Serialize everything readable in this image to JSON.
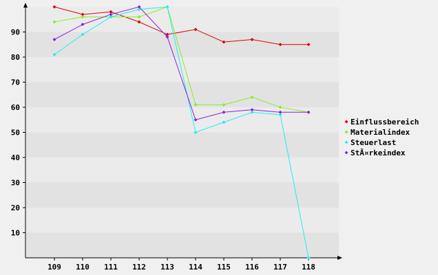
{
  "chart_data": {
    "type": "line",
    "title": "",
    "xlabel": "",
    "ylabel": "",
    "x": [
      "109",
      "110",
      "111",
      "112",
      "113",
      "114",
      "115",
      "116",
      "117",
      "118"
    ],
    "ylim": [
      0,
      100
    ],
    "yticks": [
      10,
      20,
      30,
      40,
      50,
      60,
      70,
      80,
      90
    ],
    "grid": "horizontal bands",
    "legend_position": "right",
    "series": [
      {
        "name": "Einflussbereich",
        "color": "#dd0000",
        "values": [
          100,
          97,
          98,
          94,
          89,
          91,
          86,
          87,
          85,
          85
        ]
      },
      {
        "name": "Materialindex",
        "color": "#88ee22",
        "values": [
          94,
          96,
          96,
          96,
          100,
          61,
          61,
          64,
          60,
          58
        ]
      },
      {
        "name": "Steuerlast",
        "color": "#22eeee",
        "values": [
          81,
          89,
          96,
          99,
          100,
          50,
          54,
          58,
          57,
          0
        ]
      },
      {
        "name": "StÃ¤rkeindex",
        "color": "#8822dd",
        "values": [
          87,
          93,
          97,
          100,
          88,
          55,
          58,
          59,
          58,
          58
        ]
      }
    ]
  }
}
